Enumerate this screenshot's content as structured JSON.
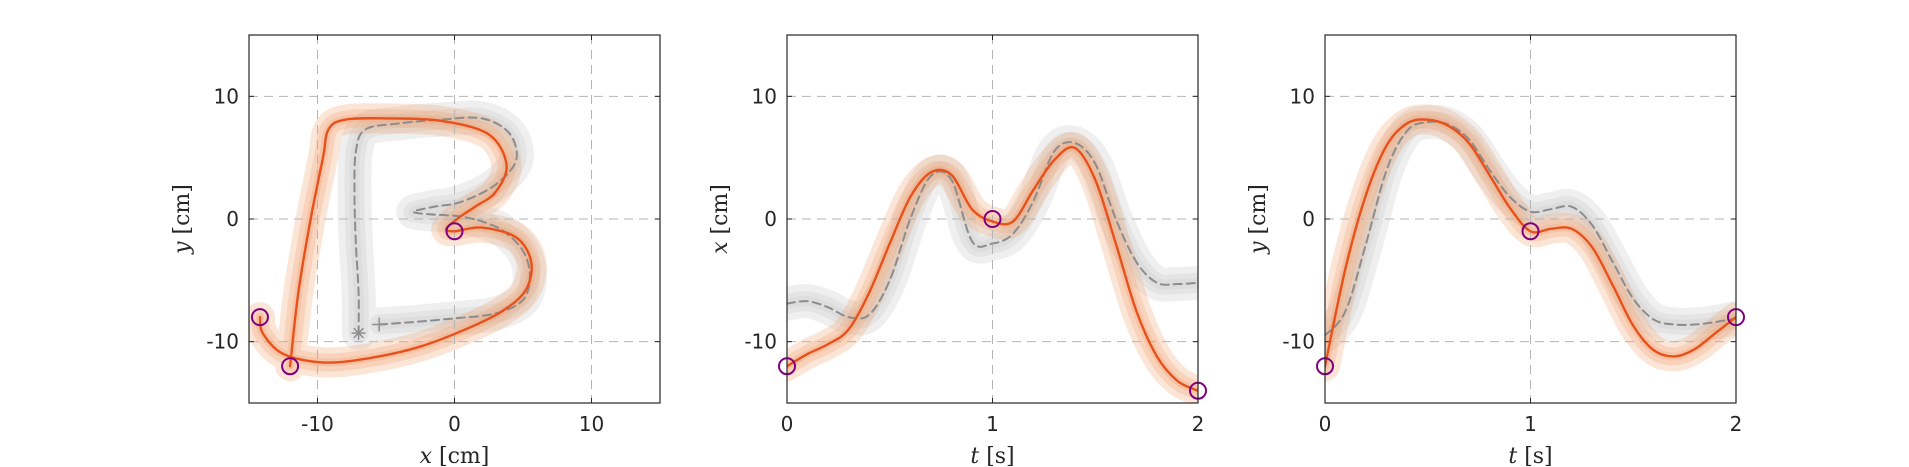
{
  "colors": {
    "model_line": "#e8501c",
    "model_band": "#f0a070",
    "demo_line": "#8c8c8c",
    "demo_band": "#d2d2d2",
    "via_point": "#800080"
  },
  "chart_data": [
    {
      "type": "line",
      "name": "xy-plot",
      "xlabel_var": "x",
      "xlabel_unit": "[cm]",
      "ylabel_var": "y",
      "ylabel_unit": "[cm]",
      "xlim": [
        -15,
        15
      ],
      "ylim": [
        -15,
        15
      ],
      "xticks": [
        -10,
        0,
        10
      ],
      "yticks": [
        -10,
        0,
        10
      ],
      "xtick_labels": [
        "-10",
        "0",
        "10"
      ],
      "ytick_labels": [
        "-10",
        "0",
        "10"
      ],
      "grid": true,
      "series": [
        {
          "role": "demo_mean",
          "points": [
            [
              -5.5,
              -8.6
            ],
            [
              -3,
              -8.4
            ],
            [
              0,
              -8.1
            ],
            [
              3,
              -7.7
            ],
            [
              5,
              -6.6
            ],
            [
              5.5,
              -4.6
            ],
            [
              5,
              -2.6
            ],
            [
              3.6,
              -1
            ],
            [
              2,
              -0.2
            ],
            [
              0.5,
              0.2
            ],
            [
              -0.5,
              0.3
            ],
            [
              -2,
              0.4
            ],
            [
              -3,
              0.6
            ],
            [
              -1.5,
              1
            ],
            [
              0.5,
              1.4
            ],
            [
              3,
              2.8
            ],
            [
              4.5,
              4.8
            ],
            [
              4,
              7
            ],
            [
              2,
              8.2
            ],
            [
              -1,
              8.1
            ],
            [
              -4,
              7.8
            ],
            [
              -6.5,
              7.3
            ],
            [
              -7.2,
              5.5
            ],
            [
              -7.3,
              2
            ],
            [
              -7.2,
              -2
            ],
            [
              -7,
              -6
            ],
            [
              -7,
              -9.3
            ]
          ]
        },
        {
          "role": "model_mean",
          "points": [
            [
              -12,
              -12
            ],
            [
              -11.4,
              -6
            ],
            [
              -10.5,
              0
            ],
            [
              -9.6,
              5
            ],
            [
              -9.2,
              7.3
            ],
            [
              -8,
              8.1
            ],
            [
              -5,
              8.2
            ],
            [
              -1,
              8
            ],
            [
              2.5,
              6.9
            ],
            [
              3.8,
              4.4
            ],
            [
              3,
              2.2
            ],
            [
              1.5,
              1
            ],
            [
              0.3,
              0.1
            ],
            [
              -0.6,
              -0.8
            ],
            [
              0,
              -1
            ],
            [
              2,
              -0.7
            ],
            [
              4.5,
              -1.5
            ],
            [
              5.6,
              -3.5
            ],
            [
              5.2,
              -5.8
            ],
            [
              3.5,
              -7.5
            ],
            [
              1,
              -8.9
            ],
            [
              -2.5,
              -10.4
            ],
            [
              -6,
              -11.3
            ],
            [
              -9.5,
              -11.7
            ],
            [
              -12.5,
              -11
            ],
            [
              -14,
              -9.3
            ],
            [
              -14.2,
              -8
            ]
          ]
        }
      ],
      "via_points": [
        [
          -14.2,
          -8
        ],
        [
          -12,
          -12
        ],
        [
          0,
          -1
        ]
      ],
      "markers": [
        [
          -7,
          -9.3
        ],
        [
          -5.5,
          -8.6
        ]
      ]
    },
    {
      "type": "line",
      "name": "tx-plot",
      "xlabel_var": "t",
      "xlabel_unit": "[s]",
      "ylabel_var": "x",
      "ylabel_unit": "[cm]",
      "xlim": [
        0,
        2
      ],
      "ylim": [
        -15,
        15
      ],
      "xticks": [
        0,
        1,
        2
      ],
      "yticks": [
        -10,
        0,
        10
      ],
      "xtick_labels": [
        "0",
        "1",
        "2"
      ],
      "ytick_labels": [
        "-10",
        "0",
        "10"
      ],
      "grid": true,
      "series": [
        {
          "role": "demo_mean",
          "x": [
            0,
            0.1,
            0.2,
            0.3,
            0.4,
            0.5,
            0.6,
            0.7,
            0.8,
            0.9,
            1.0,
            1.1,
            1.2,
            1.3,
            1.4,
            1.5,
            1.6,
            1.7,
            1.8,
            1.9,
            2.0
          ],
          "values": [
            -6.9,
            -6.7,
            -7.2,
            -8,
            -7.8,
            -5,
            0,
            3.5,
            3.2,
            -1.8,
            -2,
            -1.2,
            1.5,
            5.5,
            6.2,
            4.5,
            0,
            -3.5,
            -5.2,
            -5.3,
            -5.2
          ]
        },
        {
          "role": "model_mean",
          "x": [
            0,
            0.1,
            0.2,
            0.3,
            0.4,
            0.5,
            0.6,
            0.7,
            0.8,
            0.9,
            1.0,
            1.1,
            1.2,
            1.3,
            1.4,
            1.5,
            1.6,
            1.7,
            1.8,
            1.9,
            2.0
          ],
          "values": [
            -12,
            -11,
            -10.2,
            -9,
            -6,
            -2,
            1.8,
            3.8,
            3.6,
            0.8,
            -0.2,
            -0.2,
            2.4,
            4.8,
            5.8,
            3.2,
            -2,
            -7.5,
            -11.2,
            -13.2,
            -14
          ]
        }
      ],
      "via_points": [
        [
          0,
          -12
        ],
        [
          1,
          0
        ],
        [
          2,
          -14
        ]
      ]
    },
    {
      "type": "line",
      "name": "ty-plot",
      "xlabel_var": "t",
      "xlabel_unit": "[s]",
      "ylabel_var": "y",
      "ylabel_unit": "[cm]",
      "xlim": [
        0,
        2
      ],
      "ylim": [
        -15,
        15
      ],
      "xticks": [
        0,
        1,
        2
      ],
      "yticks": [
        -10,
        0,
        10
      ],
      "xtick_labels": [
        "0",
        "1",
        "2"
      ],
      "ytick_labels": [
        "-10",
        "0",
        "10"
      ],
      "grid": true,
      "series": [
        {
          "role": "demo_mean",
          "x": [
            0,
            0.1,
            0.2,
            0.3,
            0.4,
            0.5,
            0.6,
            0.7,
            0.8,
            0.9,
            1.0,
            1.1,
            1.2,
            1.3,
            1.4,
            1.5,
            1.6,
            1.7,
            1.8,
            1.9,
            2.0
          ],
          "values": [
            -9.5,
            -7.5,
            -2,
            4,
            7.2,
            7.9,
            7.7,
            6.5,
            4,
            1.8,
            0.6,
            0.8,
            1,
            -0.5,
            -3.5,
            -6.5,
            -8.2,
            -8.6,
            -8.6,
            -8.4,
            -8.1
          ]
        },
        {
          "role": "model_mean",
          "x": [
            0,
            0.1,
            0.2,
            0.3,
            0.4,
            0.5,
            0.6,
            0.7,
            0.8,
            0.9,
            1.0,
            1.1,
            1.2,
            1.3,
            1.4,
            1.5,
            1.6,
            1.7,
            1.8,
            1.9,
            2.0
          ],
          "values": [
            -12,
            -4,
            2,
            6,
            7.8,
            8.1,
            7.6,
            6.2,
            3.6,
            0.9,
            -1,
            -0.8,
            -0.8,
            -2.3,
            -5.4,
            -8.7,
            -10.7,
            -11.2,
            -10.6,
            -9.3,
            -8
          ]
        }
      ],
      "via_points": [
        [
          0,
          -12
        ],
        [
          1,
          -1
        ],
        [
          2,
          -8
        ]
      ]
    }
  ]
}
